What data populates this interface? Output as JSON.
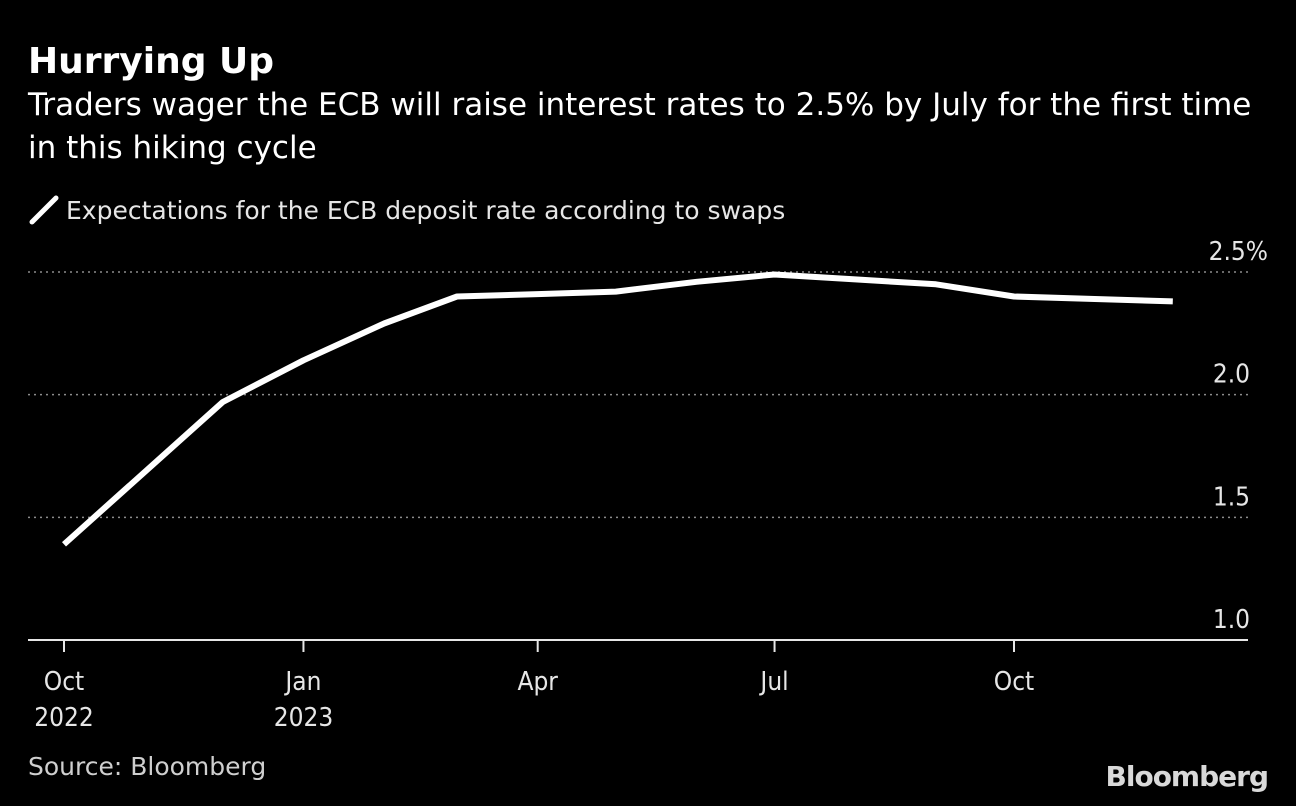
{
  "header": {
    "title": "Hurrying Up",
    "subtitle": "Traders wager the ECB will raise interest rates to 2.5% by July for the first time in this hiking cycle"
  },
  "legend": {
    "label": "Expectations for the ECB deposit rate according to swaps"
  },
  "footer": {
    "source": "Source: Bloomberg",
    "logo": "Bloomberg"
  },
  "colors": {
    "background": "#000000",
    "line": "#ffffff",
    "grid": "#8c8c8c"
  },
  "chart_data": {
    "type": "line",
    "title": "Hurrying Up",
    "subtitle": "Traders wager the ECB will raise interest rates to 2.5% by July for the first time in this hiking cycle",
    "xlabel": "",
    "ylabel": "",
    "ylim": [
      1.0,
      2.5
    ],
    "y_ticks": [
      {
        "value": 1.0,
        "label": "1.0"
      },
      {
        "value": 1.5,
        "label": "1.5"
      },
      {
        "value": 2.0,
        "label": "2.0"
      },
      {
        "value": 2.5,
        "label": "2.5%"
      }
    ],
    "xlim": [
      "2022-09-15",
      "2024-01-15"
    ],
    "x_ticks": [
      {
        "date": "2022-10-01",
        "label": "Oct",
        "sublabel": "2022"
      },
      {
        "date": "2023-01-01",
        "label": "Jan",
        "sublabel": "2023"
      },
      {
        "date": "2023-04-01",
        "label": "Apr",
        "sublabel": ""
      },
      {
        "date": "2023-07-01",
        "label": "Jul",
        "sublabel": ""
      },
      {
        "date": "2023-10-01",
        "label": "Oct",
        "sublabel": ""
      }
    ],
    "grid": "horizontal-dotted",
    "legend_position": "top-left",
    "series": [
      {
        "name": "Expectations for the ECB deposit rate according to swaps",
        "x": [
          "2022-10-01",
          "2022-12-01",
          "2023-01-01",
          "2023-02-01",
          "2023-03-01",
          "2023-04-01",
          "2023-05-01",
          "2023-06-01",
          "2023-07-01",
          "2023-08-01",
          "2023-09-01",
          "2023-10-01",
          "2023-11-01",
          "2023-12-01"
        ],
        "values": [
          1.39,
          1.97,
          2.14,
          2.29,
          2.4,
          2.41,
          2.42,
          2.46,
          2.49,
          2.47,
          2.45,
          2.4,
          2.39,
          2.38
        ]
      }
    ]
  }
}
